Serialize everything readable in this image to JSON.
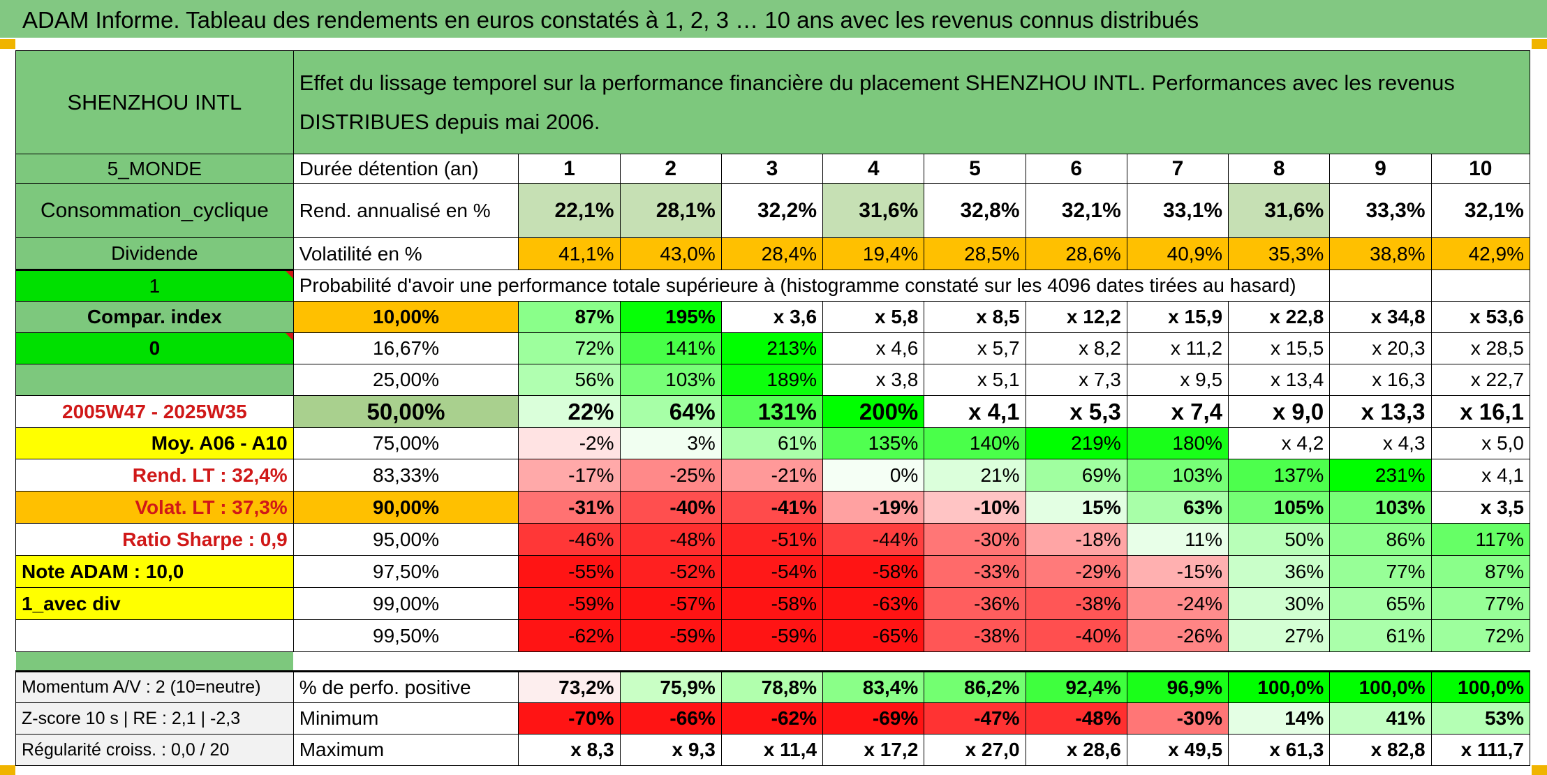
{
  "banner": "ADAM Informe. Tableau des rendements en euros constatés à 1, 2, 3 … 10 ans avec les revenus connus distribués",
  "fund_name": "SHENZHOU INTL",
  "description": "Effet du lissage temporel sur la performance financière du placement SHENZHOU INTL. Performances avec les revenus DISTRIBUES depuis mai 2006.",
  "left_panel": {
    "zone": "5_MONDE",
    "sector": "Consommation_cyclique",
    "income_type": "Dividende",
    "value_one": "1",
    "compare_label": "Compar. index",
    "value_zero": "0",
    "period": "2005W47 - 2025W35",
    "moy": "Moy. A06 - A10",
    "rend_lt": "Rend. LT :   32,4%",
    "volat_lt": "Volat. LT :   37,3%",
    "sharpe": "Ratio Sharpe :    0,9",
    "note": "Note ADAM : 10,0",
    "avec_div": "1_avec div"
  },
  "header_row": {
    "label": "Durée détention (an)",
    "years": [
      "1",
      "2",
      "3",
      "4",
      "5",
      "6",
      "7",
      "8",
      "9",
      "10"
    ]
  },
  "rend_row": {
    "label": "Rend. annualisé en %",
    "values": [
      "22,1%",
      "28,1%",
      "32,2%",
      "31,6%",
      "32,8%",
      "32,1%",
      "33,1%",
      "31,6%",
      "33,3%",
      "32,1%"
    ]
  },
  "vol_row": {
    "label": "Volatilité en %",
    "values": [
      "41,1%",
      "43,0%",
      "28,4%",
      "19,4%",
      "28,5%",
      "28,6%",
      "40,9%",
      "35,3%",
      "38,8%",
      "42,9%"
    ]
  },
  "proba_title": "Probabilité d'avoir une performance totale supérieure à (histogramme constaté sur les 4096 dates tirées au hasard)",
  "prob_rows": [
    {
      "pct": "10,00%",
      "values": [
        "87%",
        "195%",
        "x 3,6",
        "x 5,8",
        "x 8,5",
        "x 12,2",
        "x 15,9",
        "x 22,8",
        "x 34,8",
        "x 53,6"
      ]
    },
    {
      "pct": "16,67%",
      "values": [
        "72%",
        "141%",
        "213%",
        "x 4,6",
        "x 5,7",
        "x 8,2",
        "x 11,2",
        "x 15,5",
        "x 20,3",
        "x 28,5"
      ]
    },
    {
      "pct": "25,00%",
      "values": [
        "56%",
        "103%",
        "189%",
        "x 3,8",
        "x 5,1",
        "x 7,3",
        "x 9,5",
        "x 13,4",
        "x 16,3",
        "x 22,7"
      ]
    },
    {
      "pct": "50,00%",
      "values": [
        "22%",
        "64%",
        "131%",
        "200%",
        "x 4,1",
        "x 5,3",
        "x 7,4",
        "x 9,0",
        "x 13,3",
        "x 16,1"
      ]
    },
    {
      "pct": "75,00%",
      "values": [
        "-2%",
        "3%",
        "61%",
        "135%",
        "140%",
        "219%",
        "180%",
        "x 4,2",
        "x 4,3",
        "x 5,0"
      ]
    },
    {
      "pct": "83,33%",
      "values": [
        "-17%",
        "-25%",
        "-21%",
        "0%",
        "21%",
        "69%",
        "103%",
        "137%",
        "231%",
        "x 4,1"
      ]
    },
    {
      "pct": "90,00%",
      "values": [
        "-31%",
        "-40%",
        "-41%",
        "-19%",
        "-10%",
        "15%",
        "63%",
        "105%",
        "103%",
        "x 3,5"
      ]
    },
    {
      "pct": "95,00%",
      "values": [
        "-46%",
        "-48%",
        "-51%",
        "-44%",
        "-30%",
        "-18%",
        "11%",
        "50%",
        "86%",
        "117%"
      ]
    },
    {
      "pct": "97,50%",
      "values": [
        "-55%",
        "-52%",
        "-54%",
        "-58%",
        "-33%",
        "-29%",
        "-15%",
        "36%",
        "77%",
        "87%"
      ]
    },
    {
      "pct": "99,00%",
      "values": [
        "-59%",
        "-57%",
        "-58%",
        "-63%",
        "-36%",
        "-38%",
        "-24%",
        "30%",
        "65%",
        "77%"
      ]
    },
    {
      "pct": "99,50%",
      "values": [
        "-62%",
        "-59%",
        "-59%",
        "-65%",
        "-38%",
        "-40%",
        "-26%",
        "27%",
        "61%",
        "72%"
      ]
    }
  ],
  "bottom_rows": [
    {
      "left": "Momentum A/V : 2 (10=neutre)",
      "label": "% de perfo. positive",
      "values": [
        "73,2%",
        "75,9%",
        "78,8%",
        "83,4%",
        "86,2%",
        "92,4%",
        "96,9%",
        "100,0%",
        "100,0%",
        "100,0%"
      ]
    },
    {
      "left": "Z-score 10 s | RE : 2,1 | -2,3",
      "label": "Minimum",
      "values": [
        "-70%",
        "-66%",
        "-62%",
        "-69%",
        "-47%",
        "-48%",
        "-30%",
        "14%",
        "41%",
        "53%"
      ]
    },
    {
      "left": "Régularité croiss. : 0,0 / 20",
      "label": "Maximum",
      "values": [
        "x 8,3",
        "x 9,3",
        "x 11,4",
        "x 17,2",
        "x 27,0",
        "x 28,6",
        "x 49,5",
        "x 61,3",
        "x 82,8",
        "x 111,7"
      ]
    }
  ],
  "colors": {
    "banner_green": "#82c882",
    "header_green": "#7dc87d",
    "bright_green": "#00e000",
    "yellow": "#ffff00",
    "orange": "#ffc000",
    "light_green": "#c6e0b4",
    "red_text": "#d01818"
  }
}
